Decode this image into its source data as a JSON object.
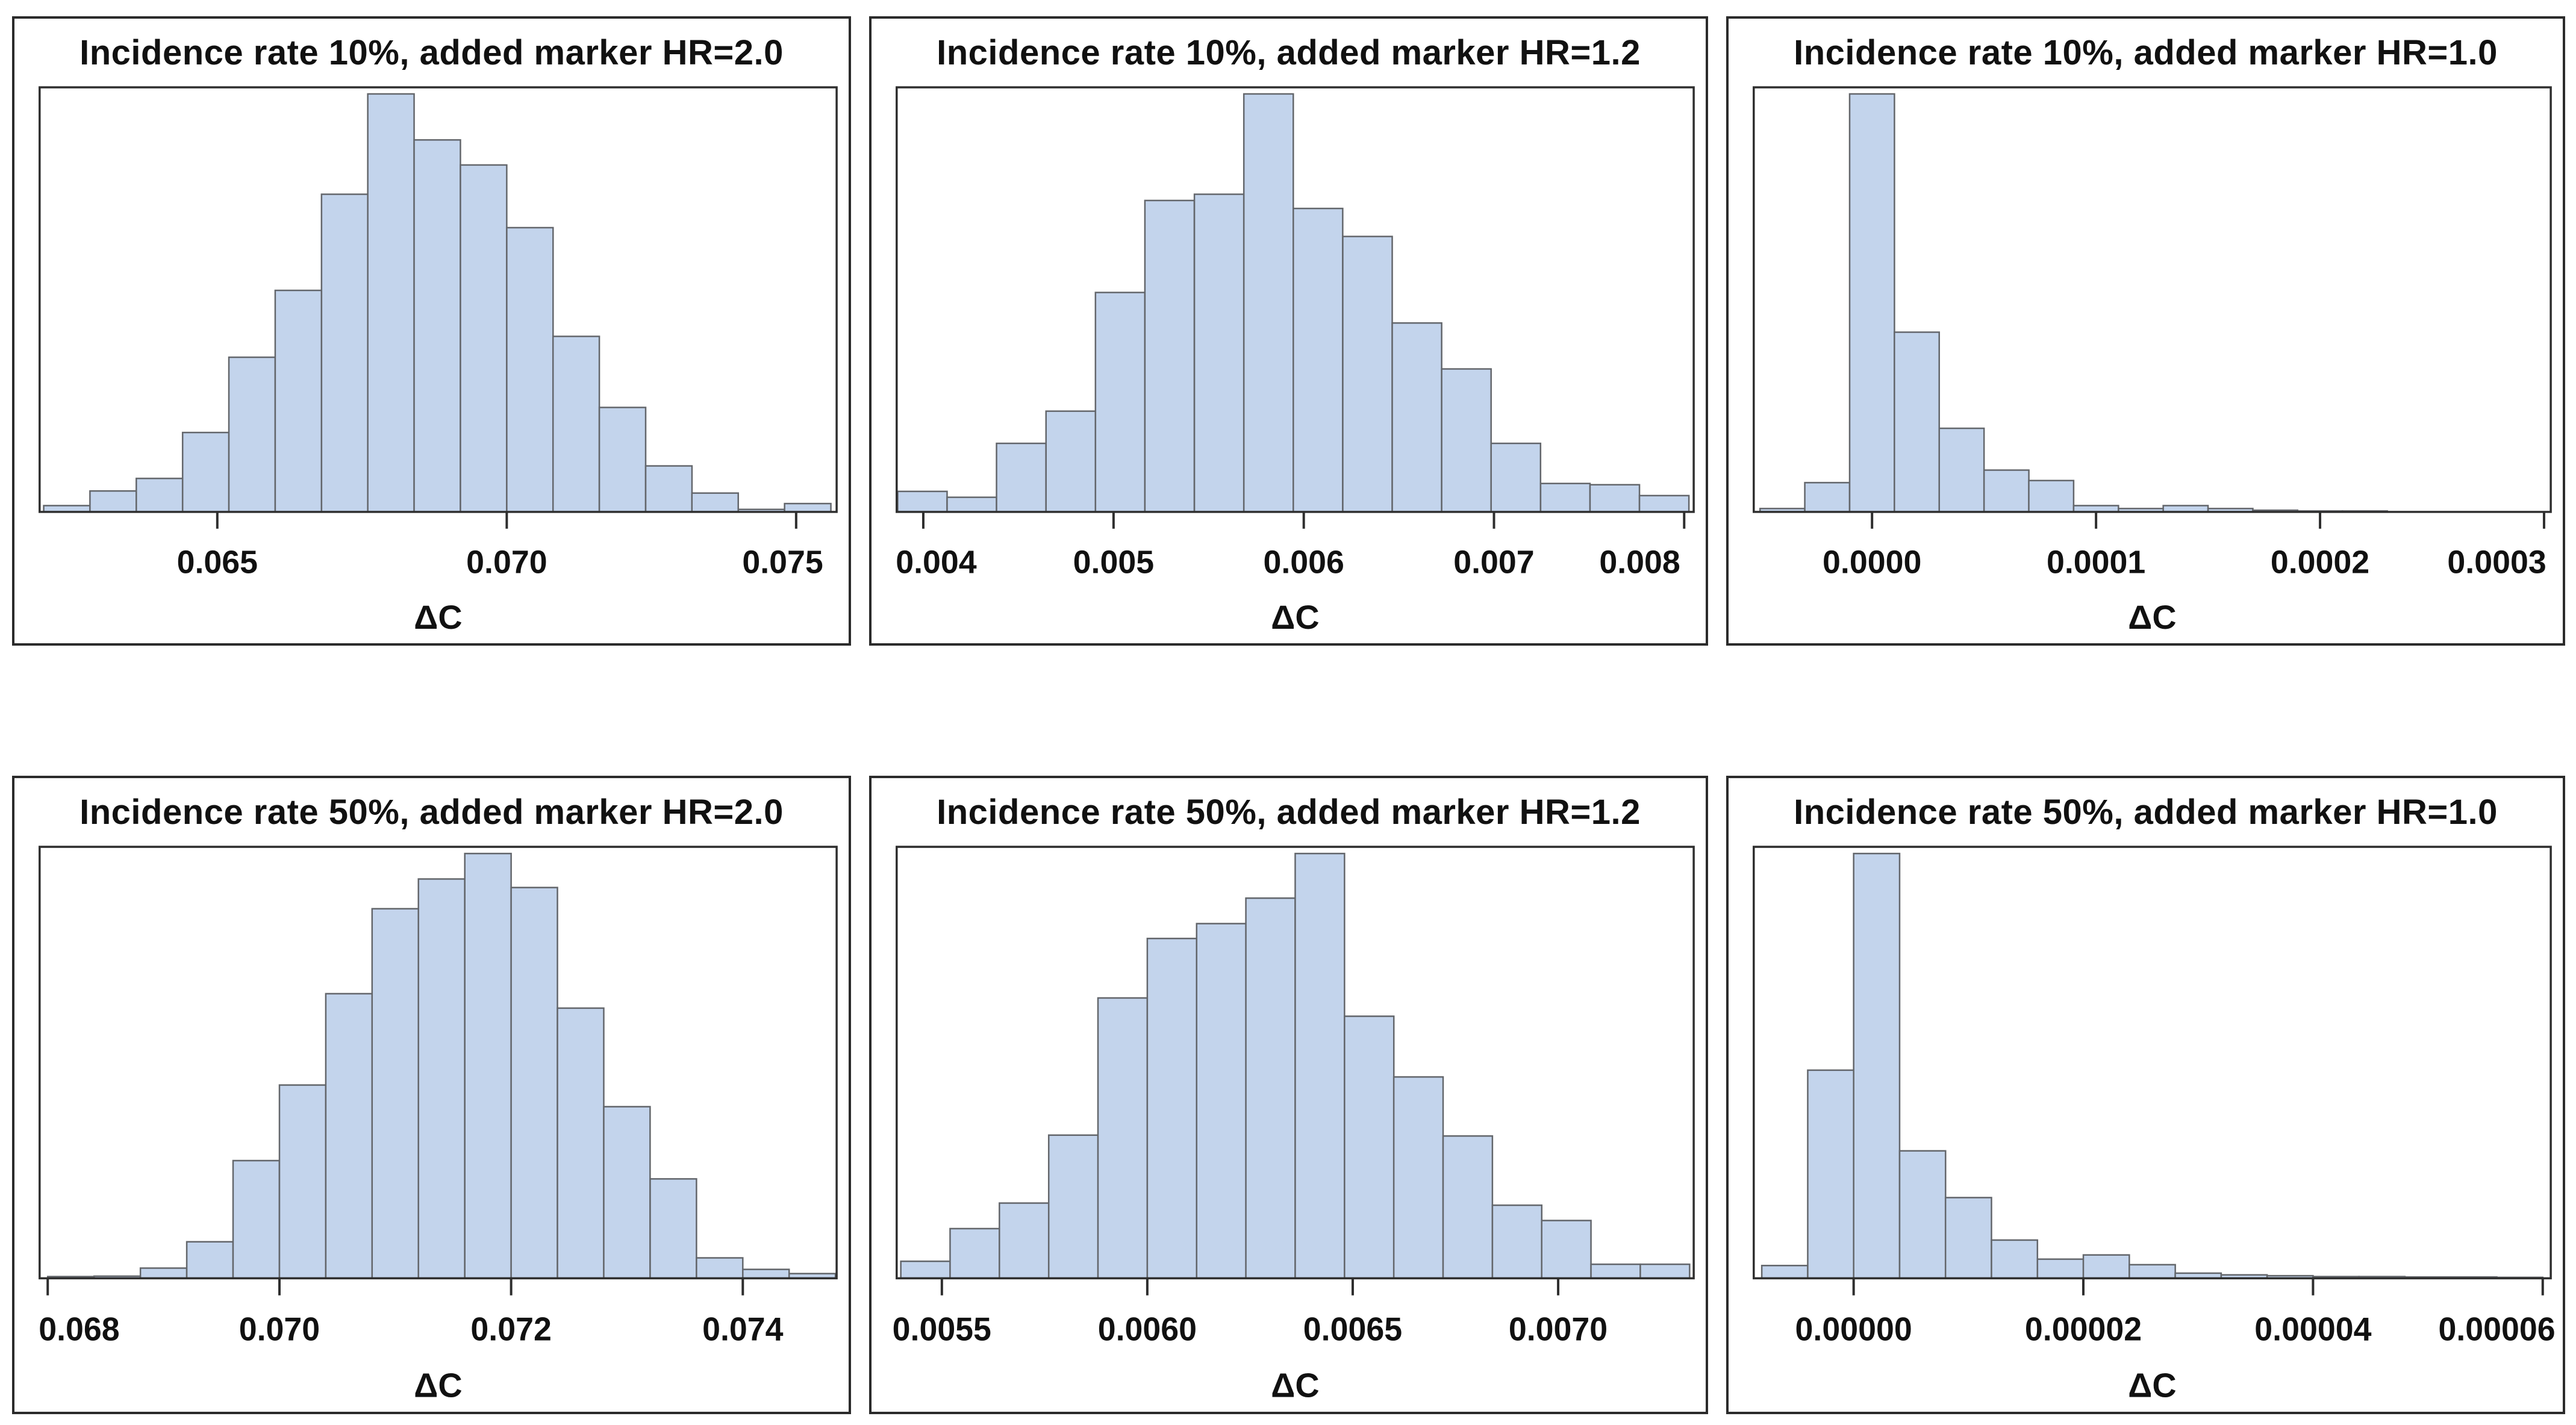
{
  "figure": {
    "background": "#ffffff",
    "bar_fill": "#c3d4ec",
    "bar_stroke": "#63666b",
    "frame_stroke": "#2e2e2e",
    "text_color": "#111111"
  },
  "chart_data": [
    {
      "type": "bar",
      "subtype": "histogram",
      "title": "Incidence rate 10%, added marker HR=2.0",
      "xlabel": "ΔC",
      "ylabel": "",
      "grid": false,
      "legend": "none",
      "xmin": 0.06193,
      "xmax": 0.0757,
      "bin_start": 0.062,
      "bin_width": 0.0008,
      "heights": [
        0.015,
        0.05,
        0.08,
        0.19,
        0.37,
        0.53,
        0.76,
        1.0,
        0.89,
        0.83,
        0.68,
        0.42,
        0.25,
        0.11,
        0.045,
        0.006,
        0.02
      ],
      "ticks": [
        {
          "value": 0.065,
          "label": "0.065"
        },
        {
          "value": 0.07,
          "label": "0.070"
        },
        {
          "value": 0.075,
          "label": "0.075"
        }
      ]
    },
    {
      "type": "bar",
      "subtype": "histogram",
      "title": "Incidence rate 10%, added marker HR=1.2",
      "xlabel": "ΔC",
      "ylabel": "",
      "grid": false,
      "legend": "none",
      "xmin": 0.00386,
      "xmax": 0.00805,
      "bin_start": 0.003865,
      "bin_width": 0.00026,
      "heights": [
        0.049,
        0.035,
        0.164,
        0.241,
        0.525,
        0.745,
        0.76,
        1.0,
        0.726,
        0.659,
        0.452,
        0.342,
        0.164,
        0.068,
        0.065,
        0.039
      ],
      "ticks": [
        {
          "value": 0.004,
          "label": "0.004"
        },
        {
          "value": 0.005,
          "label": "0.005"
        },
        {
          "value": 0.006,
          "label": "0.006"
        },
        {
          "value": 0.007,
          "label": "0.007"
        },
        {
          "value": 0.008,
          "label": "0.008"
        }
      ]
    },
    {
      "type": "bar",
      "subtype": "histogram",
      "title": "Incidence rate 10%, added marker HR=1.0",
      "xlabel": "ΔC",
      "ylabel": "",
      "grid": false,
      "legend": "none",
      "xmin": -5.28e-05,
      "xmax": 0.000303,
      "bin_start": -5e-05,
      "bin_width": 2e-05,
      "heights": [
        0.008,
        0.07,
        1.0,
        0.43,
        0.2,
        0.1,
        0.075,
        0.015,
        0.008,
        0.015,
        0.008,
        0.004,
        0.002,
        0.002
      ],
      "ticks": [
        {
          "value": 0.0,
          "label": "0.0000"
        },
        {
          "value": 0.0001,
          "label": "0.0001"
        },
        {
          "value": 0.0002,
          "label": "0.0002"
        },
        {
          "value": 0.0003,
          "label": "0.0003"
        }
      ]
    },
    {
      "type": "bar",
      "subtype": "histogram",
      "title": "Incidence rate 50%, added marker HR=2.0",
      "xlabel": "ΔC",
      "ylabel": "",
      "grid": false,
      "legend": "none",
      "xmin": 0.06793,
      "xmax": 0.07481,
      "bin_start": 0.068,
      "bin_width": 0.0004,
      "heights": [
        0.004,
        0.005,
        0.024,
        0.086,
        0.277,
        0.455,
        0.67,
        0.87,
        0.94,
        1.0,
        0.92,
        0.636,
        0.404,
        0.234,
        0.048,
        0.021,
        0.011
      ],
      "ticks": [
        {
          "value": 0.068,
          "label": "0.068"
        },
        {
          "value": 0.07,
          "label": "0.070"
        },
        {
          "value": 0.072,
          "label": "0.072"
        },
        {
          "value": 0.074,
          "label": "0.074"
        }
      ]
    },
    {
      "type": "bar",
      "subtype": "histogram",
      "title": "Incidence rate 50%, added marker HR=1.2",
      "xlabel": "ΔC",
      "ylabel": "",
      "grid": false,
      "legend": "none",
      "xmin": 0.00539,
      "xmax": 0.00733,
      "bin_start": 0.0054,
      "bin_width": 0.00012,
      "heights": [
        0.04,
        0.117,
        0.177,
        0.337,
        0.66,
        0.8,
        0.835,
        0.895,
        1.0,
        0.617,
        0.474,
        0.335,
        0.172,
        0.136,
        0.033,
        0.033
      ],
      "ticks": [
        {
          "value": 0.0055,
          "label": "0.0055"
        },
        {
          "value": 0.006,
          "label": "0.0060"
        },
        {
          "value": 0.0065,
          "label": "0.0065"
        },
        {
          "value": 0.007,
          "label": "0.0070"
        }
      ]
    },
    {
      "type": "bar",
      "subtype": "histogram",
      "title": "Incidence rate 50%, added marker HR=1.0",
      "xlabel": "ΔC",
      "ylabel": "",
      "grid": false,
      "legend": "none",
      "xmin": -8.7e-06,
      "xmax": 6.07e-05,
      "bin_start": -8e-06,
      "bin_width": 4e-06,
      "heights": [
        0.03,
        0.49,
        1.0,
        0.3,
        0.19,
        0.09,
        0.045,
        0.055,
        0.032,
        0.012,
        0.008,
        0.006,
        0.004,
        0.004,
        0.003,
        0.003,
        0.002
      ],
      "ticks": [
        {
          "value": 0.0,
          "label": "0.00000"
        },
        {
          "value": 2e-05,
          "label": "0.00002"
        },
        {
          "value": 4e-05,
          "label": "0.00004"
        },
        {
          "value": 6e-05,
          "label": "0.00006"
        }
      ]
    }
  ]
}
